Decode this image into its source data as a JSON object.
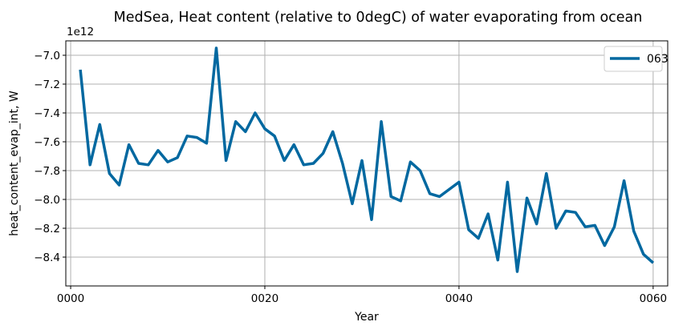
{
  "chart_data": {
    "type": "line",
    "title": "MedSea, Heat content (relative to 0degC) of water evaporating from ocean",
    "xlabel": "Year",
    "ylabel": "heat_content_evap_int, W",
    "offset_text": "1e12",
    "xlim": [
      -0.5,
      61.5
    ],
    "ylim": [
      -8.6,
      -6.9
    ],
    "x_ticks": [
      {
        "value": 0,
        "label": "0000"
      },
      {
        "value": 20,
        "label": "0020"
      },
      {
        "value": 40,
        "label": "0040"
      },
      {
        "value": 60,
        "label": "0060"
      }
    ],
    "y_ticks": [
      {
        "value": -7.0,
        "label": "−7.0"
      },
      {
        "value": -7.2,
        "label": "−7.2"
      },
      {
        "value": -7.4,
        "label": "−7.4"
      },
      {
        "value": -7.6,
        "label": "−7.6"
      },
      {
        "value": -7.8,
        "label": "−7.8"
      },
      {
        "value": -8.0,
        "label": "−8.0"
      },
      {
        "value": -8.2,
        "label": "−8.2"
      },
      {
        "value": -8.4,
        "label": "−8.4"
      }
    ],
    "grid": true,
    "legend_position": "top-right",
    "series": [
      {
        "name": "063",
        "color": "#0068a0",
        "x": [
          1,
          2,
          3,
          4,
          5,
          6,
          7,
          8,
          9,
          10,
          11,
          12,
          13,
          14,
          15,
          16,
          17,
          18,
          19,
          20,
          21,
          22,
          23,
          24,
          25,
          26,
          27,
          28,
          29,
          30,
          31,
          32,
          33,
          34,
          35,
          36,
          37,
          38,
          39,
          40,
          41,
          42,
          43,
          44,
          45,
          46,
          47,
          48,
          49,
          50,
          51,
          52,
          53,
          54,
          55,
          56,
          57,
          58,
          59,
          60
        ],
        "y": [
          -7.1,
          -7.76,
          -7.48,
          -7.82,
          -7.9,
          -7.62,
          -7.75,
          -7.76,
          -7.66,
          -7.74,
          -7.71,
          -7.56,
          -7.57,
          -7.61,
          -6.95,
          -7.73,
          -7.46,
          -7.53,
          -7.4,
          -7.51,
          -7.56,
          -7.73,
          -7.62,
          -7.76,
          -7.75,
          -7.68,
          -7.53,
          -7.75,
          -8.03,
          -7.73,
          -8.14,
          -7.46,
          -7.98,
          -8.01,
          -7.74,
          -7.8,
          -7.96,
          -7.98,
          -7.93,
          -7.88,
          -8.21,
          -8.27,
          -8.1,
          -8.42,
          -7.88,
          -8.5,
          -7.99,
          -8.17,
          -7.82,
          -8.2,
          -8.08,
          -8.09,
          -8.19,
          -8.18,
          -8.32,
          -8.19,
          -7.87,
          -8.22,
          -8.38,
          -8.44
        ]
      }
    ]
  }
}
